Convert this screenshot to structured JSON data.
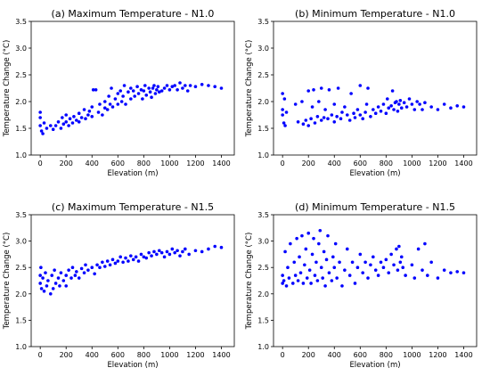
{
  "chart_data": [
    {
      "type": "scatter",
      "title": "(a) Maximum Temperature - N1.0",
      "xlabel": "Elevation (m)",
      "ylabel": "Temperature Change (°C)",
      "xlim": [
        -70,
        1500
      ],
      "ylim": [
        1.0,
        3.5
      ],
      "xticks": [
        "0",
        "200",
        "400",
        "600",
        "800",
        "1000",
        "1200",
        "1400"
      ],
      "yticks": [
        "1.0",
        "1.5",
        "2.0",
        "2.5",
        "3.0",
        "3.5"
      ],
      "grid": false,
      "color": "#0000ff",
      "points": [
        [
          0,
          1.55
        ],
        [
          0,
          1.7
        ],
        [
          0,
          1.8
        ],
        [
          10,
          1.45
        ],
        [
          20,
          1.4
        ],
        [
          30,
          1.6
        ],
        [
          50,
          1.5
        ],
        [
          80,
          1.55
        ],
        [
          100,
          1.48
        ],
        [
          120,
          1.55
        ],
        [
          140,
          1.62
        ],
        [
          160,
          1.5
        ],
        [
          170,
          1.7
        ],
        [
          180,
          1.58
        ],
        [
          200,
          1.62
        ],
        [
          200,
          1.75
        ],
        [
          220,
          1.55
        ],
        [
          230,
          1.68
        ],
        [
          250,
          1.6
        ],
        [
          260,
          1.72
        ],
        [
          280,
          1.65
        ],
        [
          300,
          1.78
        ],
        [
          300,
          1.62
        ],
        [
          320,
          1.7
        ],
        [
          340,
          1.85
        ],
        [
          350,
          1.68
        ],
        [
          370,
          1.75
        ],
        [
          380,
          1.82
        ],
        [
          400,
          1.72
        ],
        [
          400,
          1.9
        ],
        [
          410,
          2.22
        ],
        [
          430,
          2.22
        ],
        [
          450,
          1.8
        ],
        [
          460,
          1.95
        ],
        [
          480,
          1.75
        ],
        [
          500,
          1.88
        ],
        [
          500,
          2.0
        ],
        [
          520,
          1.85
        ],
        [
          530,
          2.1
        ],
        [
          540,
          1.95
        ],
        [
          550,
          2.25
        ],
        [
          560,
          1.9
        ],
        [
          580,
          2.05
        ],
        [
          600,
          1.95
        ],
        [
          600,
          2.15
        ],
        [
          620,
          2.2
        ],
        [
          630,
          2.0
        ],
        [
          640,
          2.1
        ],
        [
          650,
          2.3
        ],
        [
          660,
          1.95
        ],
        [
          680,
          2.18
        ],
        [
          700,
          2.05
        ],
        [
          700,
          2.25
        ],
        [
          720,
          2.2
        ],
        [
          730,
          2.1
        ],
        [
          750,
          2.28
        ],
        [
          760,
          2.15
        ],
        [
          780,
          2.22
        ],
        [
          790,
          2.05
        ],
        [
          800,
          2.2
        ],
        [
          810,
          2.3
        ],
        [
          820,
          2.12
        ],
        [
          840,
          2.25
        ],
        [
          850,
          2.18
        ],
        [
          860,
          2.08
        ],
        [
          870,
          2.25
        ],
        [
          880,
          2.3
        ],
        [
          890,
          2.15
        ],
        [
          900,
          2.22
        ],
        [
          910,
          2.28
        ],
        [
          920,
          2.18
        ],
        [
          940,
          2.2
        ],
        [
          960,
          2.25
        ],
        [
          980,
          2.3
        ],
        [
          1000,
          2.22
        ],
        [
          1020,
          2.28
        ],
        [
          1040,
          2.3
        ],
        [
          1060,
          2.22
        ],
        [
          1080,
          2.35
        ],
        [
          1100,
          2.25
        ],
        [
          1120,
          2.3
        ],
        [
          1140,
          2.2
        ],
        [
          1160,
          2.3
        ],
        [
          1200,
          2.28
        ],
        [
          1250,
          2.32
        ],
        [
          1300,
          2.3
        ],
        [
          1350,
          2.28
        ],
        [
          1400,
          2.25
        ]
      ]
    },
    {
      "type": "scatter",
      "title": "(b) Minimum Temperature - N1.0",
      "xlabel": "Elevation (m)",
      "ylabel": "Temperature Change (°C)",
      "xlim": [
        -70,
        1500
      ],
      "ylim": [
        1.0,
        3.5
      ],
      "xticks": [
        "0",
        "200",
        "400",
        "600",
        "800",
        "1000",
        "1200",
        "1400"
      ],
      "yticks": [
        "1.0",
        "1.5",
        "2.0",
        "2.5",
        "3.0",
        "3.5"
      ],
      "grid": false,
      "color": "#0000ff",
      "points": [
        [
          0,
          2.15
        ],
        [
          0,
          1.85
        ],
        [
          0,
          1.75
        ],
        [
          10,
          1.6
        ],
        [
          15,
          2.05
        ],
        [
          20,
          1.55
        ],
        [
          30,
          1.8
        ],
        [
          100,
          1.95
        ],
        [
          120,
          1.62
        ],
        [
          150,
          2.0
        ],
        [
          160,
          1.58
        ],
        [
          180,
          1.65
        ],
        [
          200,
          2.2
        ],
        [
          200,
          1.55
        ],
        [
          220,
          1.68
        ],
        [
          230,
          1.9
        ],
        [
          240,
          2.22
        ],
        [
          250,
          1.6
        ],
        [
          270,
          1.72
        ],
        [
          280,
          2.0
        ],
        [
          300,
          1.65
        ],
        [
          300,
          2.25
        ],
        [
          320,
          1.7
        ],
        [
          330,
          1.85
        ],
        [
          350,
          1.68
        ],
        [
          360,
          2.22
        ],
        [
          380,
          1.75
        ],
        [
          400,
          1.62
        ],
        [
          400,
          1.95
        ],
        [
          420,
          1.72
        ],
        [
          430,
          2.25
        ],
        [
          450,
          1.68
        ],
        [
          460,
          1.8
        ],
        [
          480,
          1.9
        ],
        [
          500,
          1.75
        ],
        [
          520,
          1.65
        ],
        [
          530,
          2.15
        ],
        [
          550,
          1.78
        ],
        [
          560,
          1.7
        ],
        [
          580,
          1.85
        ],
        [
          600,
          1.75
        ],
        [
          600,
          2.3
        ],
        [
          620,
          1.68
        ],
        [
          640,
          1.8
        ],
        [
          650,
          1.95
        ],
        [
          660,
          2.25
        ],
        [
          680,
          1.72
        ],
        [
          700,
          1.85
        ],
        [
          720,
          1.78
        ],
        [
          740,
          1.9
        ],
        [
          760,
          1.82
        ],
        [
          780,
          1.95
        ],
        [
          800,
          1.78
        ],
        [
          810,
          2.05
        ],
        [
          820,
          1.88
        ],
        [
          840,
          1.92
        ],
        [
          850,
          2.2
        ],
        [
          860,
          1.85
        ],
        [
          870,
          1.98
        ],
        [
          880,
          2.0
        ],
        [
          890,
          1.82
        ],
        [
          900,
          1.95
        ],
        [
          910,
          2.02
        ],
        [
          920,
          1.88
        ],
        [
          940,
          1.98
        ],
        [
          960,
          1.9
        ],
        [
          980,
          2.05
        ],
        [
          1000,
          1.95
        ],
        [
          1020,
          1.85
        ],
        [
          1040,
          2.0
        ],
        [
          1060,
          1.95
        ],
        [
          1080,
          1.85
        ],
        [
          1100,
          1.98
        ],
        [
          1150,
          1.9
        ],
        [
          1200,
          1.85
        ],
        [
          1250,
          1.95
        ],
        [
          1300,
          1.88
        ],
        [
          1350,
          1.92
        ],
        [
          1400,
          1.9
        ]
      ]
    },
    {
      "type": "scatter",
      "title": "(c) Maximum Temperature - N1.5",
      "xlabel": "Elevation (m)",
      "ylabel": "Temperature Change (°C)",
      "xlim": [
        -70,
        1500
      ],
      "ylim": [
        1.0,
        3.5
      ],
      "xticks": [
        "0",
        "200",
        "400",
        "600",
        "800",
        "1000",
        "1200",
        "1400"
      ],
      "yticks": [
        "1.0",
        "1.5",
        "2.0",
        "2.5",
        "3.0",
        "3.5"
      ],
      "grid": false,
      "color": "#0000ff",
      "points": [
        [
          0,
          2.2
        ],
        [
          0,
          2.35
        ],
        [
          5,
          2.5
        ],
        [
          10,
          2.1
        ],
        [
          20,
          2.3
        ],
        [
          30,
          2.05
        ],
        [
          40,
          2.4
        ],
        [
          50,
          2.15
        ],
        [
          60,
          2.25
        ],
        [
          80,
          2.0
        ],
        [
          90,
          2.35
        ],
        [
          100,
          2.1
        ],
        [
          110,
          2.45
        ],
        [
          120,
          2.2
        ],
        [
          140,
          2.3
        ],
        [
          150,
          2.15
        ],
        [
          160,
          2.4
        ],
        [
          180,
          2.25
        ],
        [
          200,
          2.35
        ],
        [
          200,
          2.15
        ],
        [
          220,
          2.45
        ],
        [
          240,
          2.3
        ],
        [
          250,
          2.5
        ],
        [
          270,
          2.35
        ],
        [
          280,
          2.42
        ],
        [
          300,
          2.3
        ],
        [
          320,
          2.48
        ],
        [
          340,
          2.4
        ],
        [
          350,
          2.55
        ],
        [
          370,
          2.45
        ],
        [
          400,
          2.5
        ],
        [
          420,
          2.38
        ],
        [
          440,
          2.55
        ],
        [
          460,
          2.5
        ],
        [
          480,
          2.6
        ],
        [
          500,
          2.52
        ],
        [
          520,
          2.62
        ],
        [
          540,
          2.55
        ],
        [
          560,
          2.65
        ],
        [
          580,
          2.58
        ],
        [
          600,
          2.62
        ],
        [
          620,
          2.7
        ],
        [
          640,
          2.6
        ],
        [
          660,
          2.68
        ],
        [
          680,
          2.62
        ],
        [
          700,
          2.72
        ],
        [
          720,
          2.65
        ],
        [
          740,
          2.7
        ],
        [
          760,
          2.62
        ],
        [
          780,
          2.75
        ],
        [
          800,
          2.7
        ],
        [
          820,
          2.68
        ],
        [
          840,
          2.78
        ],
        [
          860,
          2.72
        ],
        [
          880,
          2.8
        ],
        [
          900,
          2.75
        ],
        [
          920,
          2.82
        ],
        [
          940,
          2.78
        ],
        [
          960,
          2.7
        ],
        [
          980,
          2.8
        ],
        [
          1000,
          2.75
        ],
        [
          1020,
          2.85
        ],
        [
          1040,
          2.78
        ],
        [
          1060,
          2.82
        ],
        [
          1080,
          2.72
        ],
        [
          1100,
          2.8
        ],
        [
          1120,
          2.85
        ],
        [
          1150,
          2.75
        ],
        [
          1200,
          2.82
        ],
        [
          1250,
          2.8
        ],
        [
          1300,
          2.85
        ],
        [
          1350,
          2.9
        ],
        [
          1400,
          2.88
        ]
      ]
    },
    {
      "type": "scatter",
      "title": "(d) Minimum Temperature - N1.5",
      "xlabel": "Elevation (m)",
      "ylabel": "Temperature Change (°C)",
      "xlim": [
        -70,
        1500
      ],
      "ylim": [
        1.0,
        3.5
      ],
      "xticks": [
        "0",
        "200",
        "400",
        "600",
        "800",
        "1000",
        "1200",
        "1400"
      ],
      "yticks": [
        "1.0",
        "1.5",
        "2.0",
        "2.5",
        "3.0",
        "3.5"
      ],
      "grid": false,
      "color": "#0000ff",
      "points": [
        [
          0,
          2.2
        ],
        [
          0,
          2.35
        ],
        [
          10,
          2.25
        ],
        [
          20,
          2.8
        ],
        [
          30,
          2.15
        ],
        [
          40,
          2.5
        ],
        [
          50,
          2.3
        ],
        [
          60,
          2.95
        ],
        [
          80,
          2.2
        ],
        [
          90,
          2.6
        ],
        [
          100,
          2.35
        ],
        [
          110,
          3.05
        ],
        [
          120,
          2.25
        ],
        [
          130,
          2.7
        ],
        [
          140,
          2.4
        ],
        [
          150,
          3.1
        ],
        [
          160,
          2.2
        ],
        [
          170,
          2.55
        ],
        [
          180,
          2.85
        ],
        [
          190,
          2.3
        ],
        [
          200,
          3.15
        ],
        [
          210,
          2.45
        ],
        [
          220,
          2.2
        ],
        [
          230,
          2.75
        ],
        [
          240,
          3.05
        ],
        [
          250,
          2.35
        ],
        [
          260,
          2.6
        ],
        [
          270,
          2.25
        ],
        [
          280,
          2.95
        ],
        [
          290,
          3.2
        ],
        [
          300,
          2.5
        ],
        [
          310,
          2.3
        ],
        [
          320,
          2.8
        ],
        [
          330,
          2.15
        ],
        [
          340,
          2.65
        ],
        [
          350,
          3.1
        ],
        [
          360,
          2.4
        ],
        [
          380,
          2.25
        ],
        [
          390,
          2.7
        ],
        [
          400,
          2.5
        ],
        [
          410,
          2.95
        ],
        [
          420,
          2.3
        ],
        [
          440,
          2.6
        ],
        [
          460,
          2.15
        ],
        [
          480,
          2.45
        ],
        [
          500,
          2.85
        ],
        [
          520,
          2.35
        ],
        [
          540,
          2.6
        ],
        [
          560,
          2.2
        ],
        [
          580,
          2.5
        ],
        [
          600,
          2.75
        ],
        [
          620,
          2.4
        ],
        [
          640,
          2.6
        ],
        [
          660,
          2.3
        ],
        [
          680,
          2.55
        ],
        [
          700,
          2.7
        ],
        [
          720,
          2.45
        ],
        [
          740,
          2.35
        ],
        [
          760,
          2.6
        ],
        [
          780,
          2.5
        ],
        [
          800,
          2.65
        ],
        [
          820,
          2.4
        ],
        [
          840,
          2.75
        ],
        [
          860,
          2.55
        ],
        [
          880,
          2.85
        ],
        [
          890,
          2.45
        ],
        [
          900,
          2.9
        ],
        [
          910,
          2.6
        ],
        [
          920,
          2.7
        ],
        [
          930,
          2.5
        ],
        [
          950,
          2.35
        ],
        [
          1000,
          2.55
        ],
        [
          1020,
          2.3
        ],
        [
          1050,
          2.85
        ],
        [
          1080,
          2.45
        ],
        [
          1100,
          2.95
        ],
        [
          1120,
          2.35
        ],
        [
          1150,
          2.6
        ],
        [
          1200,
          2.3
        ],
        [
          1250,
          2.45
        ],
        [
          1300,
          2.4
        ],
        [
          1350,
          2.42
        ],
        [
          1400,
          2.4
        ]
      ]
    }
  ]
}
